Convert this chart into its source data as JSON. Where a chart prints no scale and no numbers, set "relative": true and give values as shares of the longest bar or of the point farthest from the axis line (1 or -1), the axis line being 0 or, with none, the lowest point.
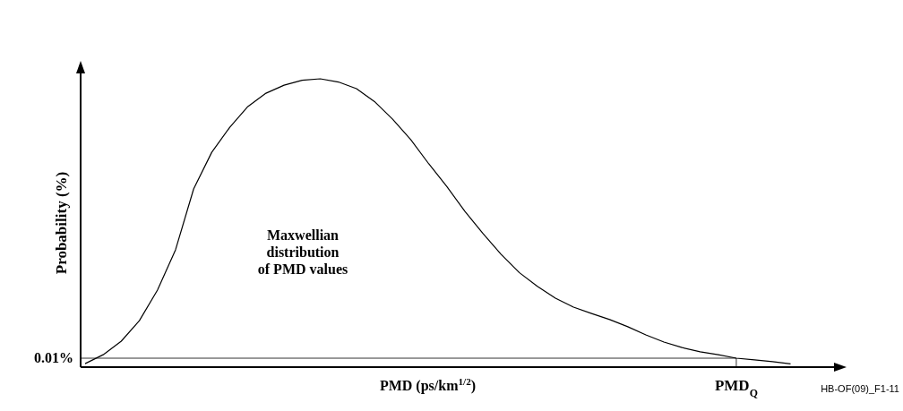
{
  "chart_data": {
    "type": "line",
    "relative": true,
    "xlabel": "PMD (ps/km$^{1/2}$)",
    "ylabel": "Probability (%)",
    "categories": [
      null,
      null,
      null,
      null,
      null,
      null,
      null,
      null,
      null,
      null,
      null,
      null,
      null,
      null,
      null,
      null,
      null,
      null,
      null,
      null,
      null,
      null,
      null,
      null,
      null,
      null,
      null,
      null,
      null,
      null,
      null,
      null,
      null,
      null,
      null,
      null,
      null,
      null,
      null,
      null
    ],
    "series": [
      {
        "color": "#000000",
        "values": [
          0.012,
          0.043,
          0.09,
          0.161,
          0.267,
          0.407,
          0.618,
          0.745,
          0.832,
          0.904,
          0.95,
          0.978,
          0.995,
          1,
          0.989,
          0.966,
          0.921,
          0.86,
          0.789,
          0.705,
          0.626,
          0.54,
          0.463,
          0.391,
          0.328,
          0.28,
          0.239,
          0.208,
          0.186,
          0.165,
          0.14,
          0.112,
          0.087,
          0.068,
          0.053,
          0.043,
          0.031,
          0.025,
          0.019,
          0.011
        ]
      }
    ],
    "ref_lines": [
      {
        "axis": "y",
        "value": 0.031
      }
    ],
    "annotations": [
      "Maxwellian\ndistribution\nof PMD values",
      "0.01%",
      {
        "text": "PMD$_{Q}$",
        "y": 0.031
      },
      "HB-OF(09)_F1-11"
    ]
  }
}
